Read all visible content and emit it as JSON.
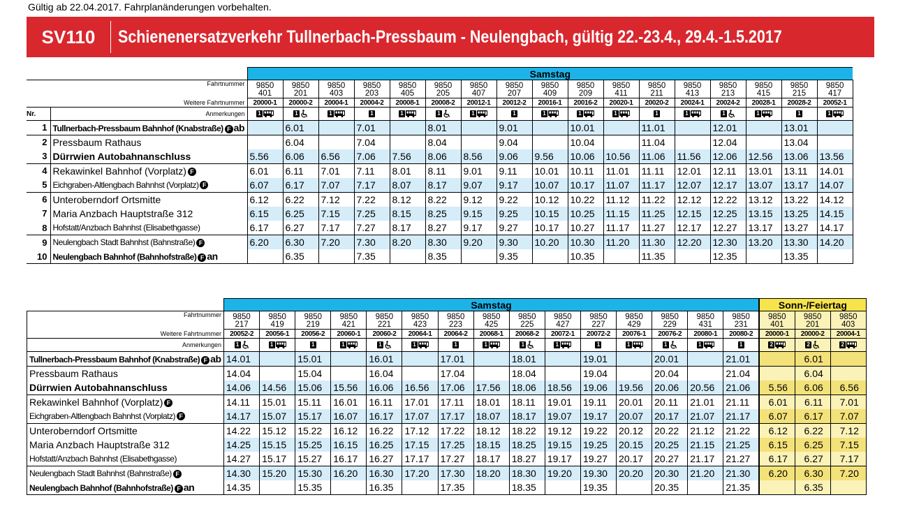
{
  "note": "Gültig ab 22.04.2017. Fahrplanänderungen vorbehalten.",
  "banner": {
    "code": "SV110",
    "title": "Schienenersatzverkehr Tullnerbach-Pressbaum - Neulengbach, gültig 22.-23.4., 29.4.-1.5.2017"
  },
  "labels": {
    "fahrtnummer": "Fahrtnummer",
    "weitere": "Weitere Fahrtnummer",
    "anmerkungen": "Anmerkungen",
    "nr": "Nr."
  },
  "stops": [
    {
      "nr": "1",
      "name": "Tullnerbach-Pressbaum Bahnhof (Knabstraße)",
      "style": "s-cb",
      "f": true,
      "suffix": "ab"
    },
    {
      "nr": "2",
      "name": "Pressbaum Rathaus",
      "style": "s-reg",
      "f": false,
      "suffix": ""
    },
    {
      "nr": "3",
      "name": "Dürrwien Autobahnanschluss",
      "style": "s-bold",
      "f": false,
      "suffix": ""
    },
    {
      "nr": "4",
      "name": "Rekawinkel Bahnhof (Vorplatz)",
      "style": "s-reg",
      "f": true,
      "suffix": ""
    },
    {
      "nr": "5",
      "name": "Eichgraben-Altlengbach Bahnhst (Vorplatz)",
      "style": "s-cr",
      "f": true,
      "suffix": ""
    },
    {
      "nr": "6",
      "name": "Unteroberndorf Ortsmitte",
      "style": "s-reg",
      "f": false,
      "suffix": ""
    },
    {
      "nr": "7",
      "name": "Maria Anzbach Hauptstraße 312",
      "style": "s-reg",
      "f": false,
      "suffix": ""
    },
    {
      "nr": "8",
      "name": "Hofstatt/Anzbach Bahnhst (Elisabethgasse)",
      "style": "s-cr",
      "f": false,
      "suffix": ""
    },
    {
      "nr": "9",
      "name": "Neulengbach Stadt Bahnhst (Bahnstraße)",
      "style": "s-cr",
      "f": true,
      "suffix": ""
    },
    {
      "nr": "10",
      "name": "Neulengbach Bahnhof (Bahnhofstraße)",
      "style": "s-cb",
      "f": true,
      "suffix": "an"
    }
  ],
  "table1": {
    "group": "Samstag",
    "columns": [
      {
        "fn": [
          "9850",
          "401"
        ],
        "wf": "20000-1",
        "an": [
          "1",
          "bus"
        ],
        "times": [
          "",
          "",
          "5.56",
          "6.01",
          "6.07",
          "6.12",
          "6.15",
          "6.17",
          "6.20",
          ""
        ]
      },
      {
        "fn": [
          "9850",
          "201"
        ],
        "wf": "20000-2",
        "an": [
          "1",
          "wheel"
        ],
        "times": [
          "6.01",
          "6.04",
          "6.06",
          "6.11",
          "6.17",
          "6.22",
          "6.25",
          "6.27",
          "6.30",
          "6.35"
        ]
      },
      {
        "fn": [
          "9850",
          "403"
        ],
        "wf": "20004-1",
        "an": [
          "1",
          "bus"
        ],
        "times": [
          "",
          "",
          "6.56",
          "7.01",
          "7.07",
          "7.12",
          "7.15",
          "7.17",
          "7.20",
          ""
        ]
      },
      {
        "fn": [
          "9850",
          "203"
        ],
        "wf": "20004-2",
        "an": [
          "1"
        ],
        "times": [
          "7.01",
          "7.04",
          "7.06",
          "7.11",
          "7.17",
          "7.22",
          "7.25",
          "7.27",
          "7.30",
          "7.35"
        ]
      },
      {
        "fn": [
          "9850",
          "405"
        ],
        "wf": "20008-1",
        "an": [
          "1",
          "bus"
        ],
        "times": [
          "",
          "",
          "7.56",
          "8.01",
          "8.07",
          "8.12",
          "8.15",
          "8.17",
          "8.20",
          ""
        ]
      },
      {
        "fn": [
          "9850",
          "205"
        ],
        "wf": "20008-2",
        "an": [
          "1",
          "wheel"
        ],
        "times": [
          "8.01",
          "8.04",
          "8.06",
          "8.11",
          "8.17",
          "8.22",
          "8.25",
          "8.27",
          "8.30",
          "8.35"
        ]
      },
      {
        "fn": [
          "9850",
          "407"
        ],
        "wf": "20012-1",
        "an": [
          "1",
          "bus"
        ],
        "times": [
          "",
          "",
          "8.56",
          "9.01",
          "9.07",
          "9.12",
          "9.15",
          "9.17",
          "9.20",
          ""
        ]
      },
      {
        "fn": [
          "9850",
          "207"
        ],
        "wf": "20012-2",
        "an": [
          "1"
        ],
        "times": [
          "9.01",
          "9.04",
          "9.06",
          "9.11",
          "9.17",
          "9.22",
          "9.25",
          "9.27",
          "9.30",
          "9.35"
        ]
      },
      {
        "fn": [
          "9850",
          "409"
        ],
        "wf": "20016-1",
        "an": [
          "1",
          "bus"
        ],
        "times": [
          "",
          "",
          "9.56",
          "10.01",
          "10.07",
          "10.12",
          "10.15",
          "10.17",
          "10.20",
          ""
        ]
      },
      {
        "fn": [
          "9850",
          "209"
        ],
        "wf": "20016-2",
        "an": [
          "1",
          "bus"
        ],
        "times": [
          "10.01",
          "10.04",
          "10.06",
          "10.11",
          "10.17",
          "10.22",
          "10.25",
          "10.27",
          "10.30",
          "10.35"
        ]
      },
      {
        "fn": [
          "9850",
          "411"
        ],
        "wf": "20020-1",
        "an": [
          "1",
          "bus"
        ],
        "times": [
          "",
          "",
          "10.56",
          "11.01",
          "11.07",
          "11.12",
          "11.15",
          "11.17",
          "11.20",
          ""
        ]
      },
      {
        "fn": [
          "9850",
          "211"
        ],
        "wf": "20020-2",
        "an": [
          "1"
        ],
        "times": [
          "11.01",
          "11.04",
          "11.06",
          "11.11",
          "11.17",
          "11.22",
          "11.25",
          "11.27",
          "11.30",
          "11.35"
        ]
      },
      {
        "fn": [
          "9850",
          "413"
        ],
        "wf": "20024-1",
        "an": [
          "1",
          "bus"
        ],
        "times": [
          "",
          "",
          "11.56",
          "12.01",
          "12.07",
          "12.12",
          "12.15",
          "12.17",
          "12.20",
          ""
        ]
      },
      {
        "fn": [
          "9850",
          "213"
        ],
        "wf": "20024-2",
        "an": [
          "1",
          "wheel"
        ],
        "times": [
          "12.01",
          "12.04",
          "12.06",
          "12.11",
          "12.17",
          "12.22",
          "12.25",
          "12.27",
          "12.30",
          "12.35"
        ]
      },
      {
        "fn": [
          "9850",
          "415"
        ],
        "wf": "20028-1",
        "an": [
          "1",
          "bus"
        ],
        "times": [
          "",
          "",
          "12.56",
          "13.01",
          "13.07",
          "13.12",
          "13.15",
          "13.17",
          "13.20",
          ""
        ]
      },
      {
        "fn": [
          "9850",
          "215"
        ],
        "wf": "20028-2",
        "an": [
          "1"
        ],
        "times": [
          "13.01",
          "13.04",
          "13.06",
          "13.11",
          "13.17",
          "13.22",
          "13.25",
          "13.27",
          "13.30",
          "13.35"
        ]
      },
      {
        "fn": [
          "9850",
          "417"
        ],
        "wf": "20052-1",
        "an": [
          "1",
          "bus"
        ],
        "times": [
          "",
          "",
          "13.56",
          "14.01",
          "14.07",
          "14.12",
          "14.15",
          "14.17",
          "14.20",
          ""
        ]
      }
    ]
  },
  "table2": {
    "group": "Samstag",
    "group2": "Sonn-/Feiertag",
    "columns": [
      {
        "fn": [
          "9850",
          "217"
        ],
        "wf": "20052-2",
        "an": [
          "1",
          "wheel"
        ],
        "times": [
          "14.01",
          "14.04",
          "14.06",
          "14.11",
          "14.17",
          "14.22",
          "14.25",
          "14.27",
          "14.30",
          "14.35"
        ]
      },
      {
        "fn": [
          "9850",
          "419"
        ],
        "wf": "20056-1",
        "an": [
          "1",
          "bus"
        ],
        "times": [
          "",
          "",
          "14.56",
          "15.01",
          "15.07",
          "15.12",
          "15.15",
          "15.17",
          "15.20",
          ""
        ]
      },
      {
        "fn": [
          "9850",
          "219"
        ],
        "wf": "20056-2",
        "an": [
          "1"
        ],
        "times": [
          "15.01",
          "15.04",
          "15.06",
          "15.11",
          "15.17",
          "15.22",
          "15.25",
          "15.27",
          "15.30",
          "15.35"
        ]
      },
      {
        "fn": [
          "9850",
          "421"
        ],
        "wf": "20060-1",
        "an": [
          "1",
          "bus"
        ],
        "times": [
          "",
          "",
          "15.56",
          "16.01",
          "16.07",
          "16.12",
          "16.15",
          "16.17",
          "16.20",
          ""
        ]
      },
      {
        "fn": [
          "9850",
          "221"
        ],
        "wf": "20060-2",
        "an": [
          "1",
          "wheel"
        ],
        "times": [
          "16.01",
          "16.04",
          "16.06",
          "16.11",
          "16.17",
          "16.22",
          "16.25",
          "16.27",
          "16.30",
          "16.35"
        ]
      },
      {
        "fn": [
          "9850",
          "423"
        ],
        "wf": "20064-1",
        "an": [
          "1",
          "bus"
        ],
        "times": [
          "",
          "",
          "16.56",
          "17.01",
          "17.07",
          "17.12",
          "17.15",
          "17.17",
          "17.20",
          ""
        ]
      },
      {
        "fn": [
          "9850",
          "223"
        ],
        "wf": "20064-2",
        "an": [
          "1"
        ],
        "times": [
          "17.01",
          "17.04",
          "17.06",
          "17.11",
          "17.17",
          "17.22",
          "17.25",
          "17.27",
          "17.30",
          "17.35"
        ]
      },
      {
        "fn": [
          "9850",
          "425"
        ],
        "wf": "20068-1",
        "an": [
          "1",
          "bus"
        ],
        "times": [
          "",
          "",
          "17.56",
          "18.01",
          "18.07",
          "18.12",
          "18.15",
          "18.17",
          "18.20",
          ""
        ]
      },
      {
        "fn": [
          "9850",
          "225"
        ],
        "wf": "20068-2",
        "an": [
          "1",
          "wheel"
        ],
        "times": [
          "18.01",
          "18.04",
          "18.06",
          "18.11",
          "18.17",
          "18.22",
          "18.25",
          "18.27",
          "18.30",
          "18.35"
        ]
      },
      {
        "fn": [
          "9850",
          "427"
        ],
        "wf": "20072-1",
        "an": [
          "1",
          "bus"
        ],
        "times": [
          "",
          "",
          "18.56",
          "19.01",
          "19.07",
          "19.12",
          "19.15",
          "19.17",
          "19.20",
          ""
        ]
      },
      {
        "fn": [
          "9850",
          "227"
        ],
        "wf": "20072-2",
        "an": [
          "1"
        ],
        "times": [
          "19.01",
          "19.04",
          "19.06",
          "19.11",
          "19.17",
          "19.22",
          "19.25",
          "19.27",
          "19.30",
          "19.35"
        ]
      },
      {
        "fn": [
          "9850",
          "429"
        ],
        "wf": "20076-1",
        "an": [
          "1",
          "bus"
        ],
        "times": [
          "",
          "",
          "19.56",
          "20.01",
          "20.07",
          "20.12",
          "20.15",
          "20.17",
          "20.20",
          ""
        ]
      },
      {
        "fn": [
          "9850",
          "229"
        ],
        "wf": "20076-2",
        "an": [
          "1",
          "wheel"
        ],
        "times": [
          "20.01",
          "20.04",
          "20.06",
          "20.11",
          "20.17",
          "20.22",
          "20.25",
          "20.27",
          "20.30",
          "20.35"
        ]
      },
      {
        "fn": [
          "9850",
          "431"
        ],
        "wf": "20080-1",
        "an": [
          "1",
          "bus"
        ],
        "times": [
          "",
          "",
          "20.56",
          "21.01",
          "21.07",
          "21.12",
          "21.15",
          "21.17",
          "21.20",
          ""
        ]
      },
      {
        "fn": [
          "9850",
          "231"
        ],
        "wf": "20080-2",
        "an": [
          "1"
        ],
        "times": [
          "21.01",
          "21.04",
          "21.06",
          "21.11",
          "21.17",
          "21.22",
          "21.25",
          "21.27",
          "21.30",
          "21.35"
        ]
      },
      {
        "fn": [
          "9850",
          "401"
        ],
        "wf": "20000-1",
        "an": [
          "2",
          "bus"
        ],
        "sonn": true,
        "times": [
          "",
          "",
          "5.56",
          "6.01",
          "6.07",
          "6.12",
          "6.15",
          "6.17",
          "6.20",
          ""
        ]
      },
      {
        "fn": [
          "9850",
          "201"
        ],
        "wf": "20000-2",
        "an": [
          "2",
          "wheel"
        ],
        "sonn": true,
        "times": [
          "6.01",
          "6.04",
          "6.06",
          "6.11",
          "6.17",
          "6.22",
          "6.25",
          "6.27",
          "6.30",
          "6.35"
        ]
      },
      {
        "fn": [
          "9850",
          "403"
        ],
        "wf": "20004-1",
        "an": [
          "2",
          "bus"
        ],
        "sonn": true,
        "times": [
          "",
          "",
          "6.56",
          "7.01",
          "7.07",
          "7.12",
          "7.15",
          "7.17",
          "7.20",
          ""
        ]
      }
    ]
  }
}
